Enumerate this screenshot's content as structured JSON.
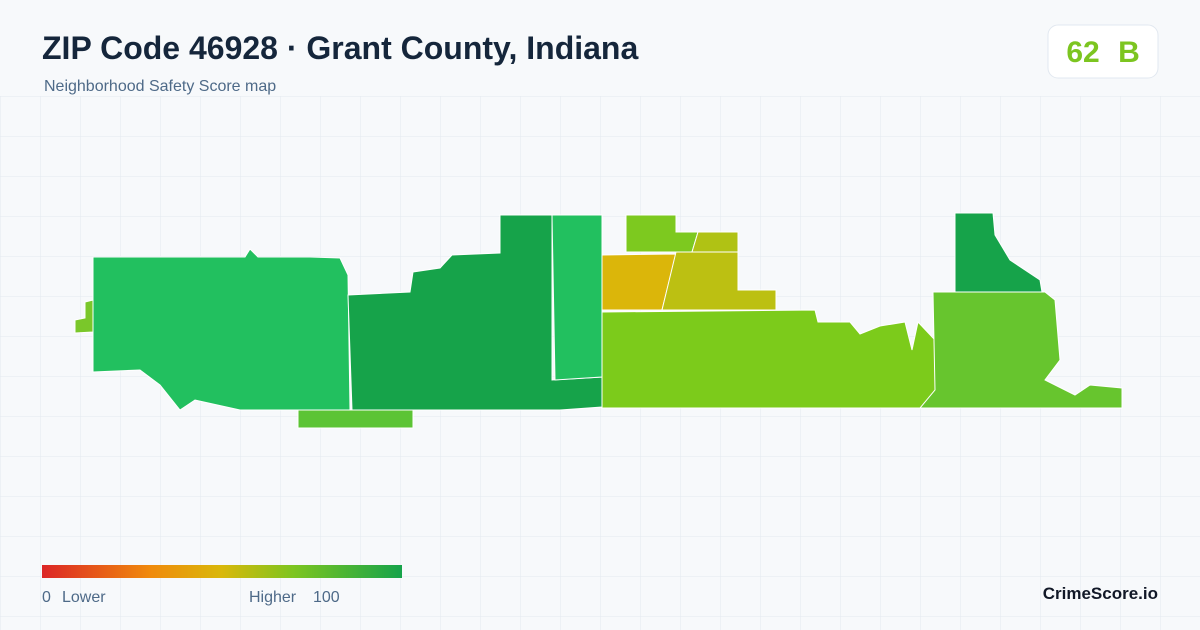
{
  "header": {
    "title": "ZIP Code 46928 · Grant County, Indiana",
    "subtitle": "Neighborhood Safety Score map"
  },
  "score": {
    "value": 62,
    "grade": "B"
  },
  "legend": {
    "min": 0,
    "min_label": "Lower",
    "max_label": "Higher",
    "max": 100
  },
  "brand": "CrimeScore.io"
}
